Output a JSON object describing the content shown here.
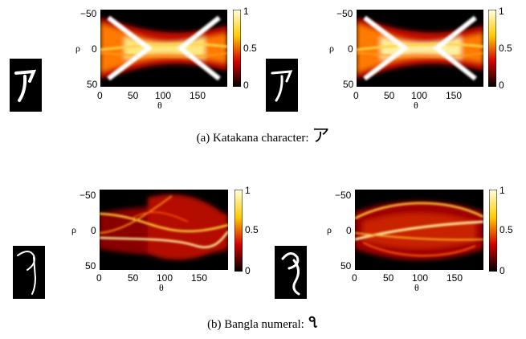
{
  "captions": {
    "a_text": "(a) Katakana character: ",
    "a_glyph": "ア",
    "b_text": "(b) Bangla numeral: ",
    "b_glyph": "৭"
  },
  "axes": {
    "x_label": "θ",
    "y_label": "ρ",
    "x_ticks": [
      "0",
      "50",
      "100",
      "150"
    ],
    "y_ticks": [
      "−50",
      "0",
      "50"
    ],
    "colorbar_ticks": [
      "1",
      "0.5",
      "0"
    ]
  },
  "chart_data": [
    {
      "type": "heatmap",
      "panel": "a-left",
      "colormap": "hot",
      "xlabel": "θ",
      "ylabel": "ρ",
      "xlim": [
        0,
        180
      ],
      "ylim": [
        -55,
        55
      ],
      "clim": [
        0,
        1
      ]
    },
    {
      "type": "heatmap",
      "panel": "a-right",
      "colormap": "hot",
      "xlabel": "θ",
      "ylabel": "ρ",
      "xlim": [
        0,
        180
      ],
      "ylim": [
        -55,
        55
      ],
      "clim": [
        0,
        1
      ]
    },
    {
      "type": "heatmap",
      "panel": "b-left",
      "colormap": "hot",
      "xlabel": "θ",
      "ylabel": "ρ",
      "xlim": [
        0,
        180
      ],
      "ylim": [
        -55,
        55
      ],
      "clim": [
        0,
        1
      ]
    },
    {
      "type": "heatmap",
      "panel": "b-right",
      "colormap": "hot",
      "xlabel": "θ",
      "ylabel": "ρ",
      "xlim": [
        0,
        180
      ],
      "ylim": [
        -55,
        55
      ],
      "clim": [
        0,
        1
      ]
    }
  ]
}
